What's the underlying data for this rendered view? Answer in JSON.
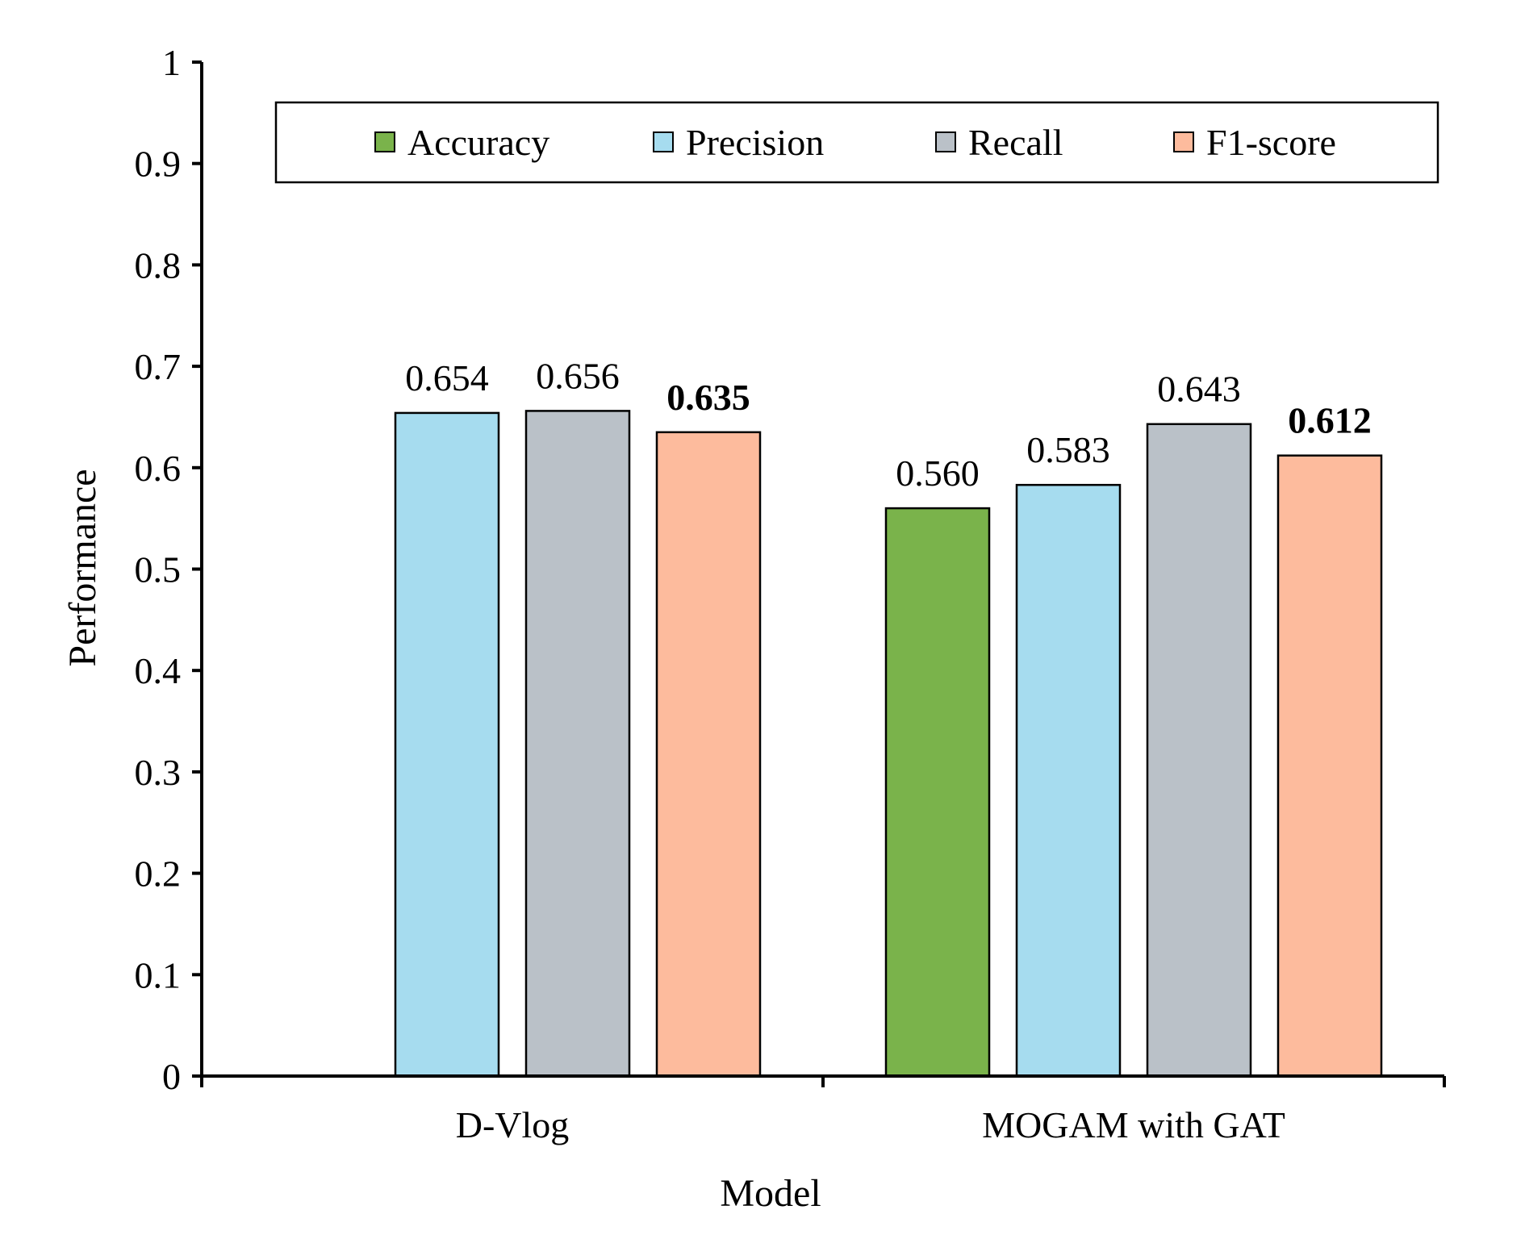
{
  "chart_data": {
    "type": "bar",
    "title": "",
    "xlabel": "Model",
    "ylabel": "Performance",
    "ylim": [
      0,
      1
    ],
    "yticks": [
      "0",
      "0.1",
      "0.2",
      "0.3",
      "0.4",
      "0.5",
      "0.6",
      "0.7",
      "0.8",
      "0.9",
      "1"
    ],
    "categories": [
      "D-Vlog",
      "MOGAM with GAT"
    ],
    "legend_position": "top",
    "series": [
      {
        "name": "Accuracy",
        "color": "#7ab34b",
        "values": [
          null,
          0.56
        ],
        "labels": [
          null,
          "0.560"
        ],
        "bold": [
          false,
          false
        ]
      },
      {
        "name": "Precision",
        "color": "#a6dcef",
        "values": [
          0.654,
          0.583
        ],
        "labels": [
          "0.654",
          "0.583"
        ],
        "bold": [
          false,
          false
        ]
      },
      {
        "name": "Recall",
        "color": "#bac1c8",
        "values": [
          0.656,
          0.643
        ],
        "labels": [
          "0.656",
          "0.643"
        ],
        "bold": [
          false,
          false
        ]
      },
      {
        "name": "F1-score",
        "color": "#fdbb9d",
        "values": [
          0.635,
          0.612
        ],
        "labels": [
          "0.635",
          "0.612"
        ],
        "bold": [
          true,
          true
        ]
      }
    ]
  }
}
